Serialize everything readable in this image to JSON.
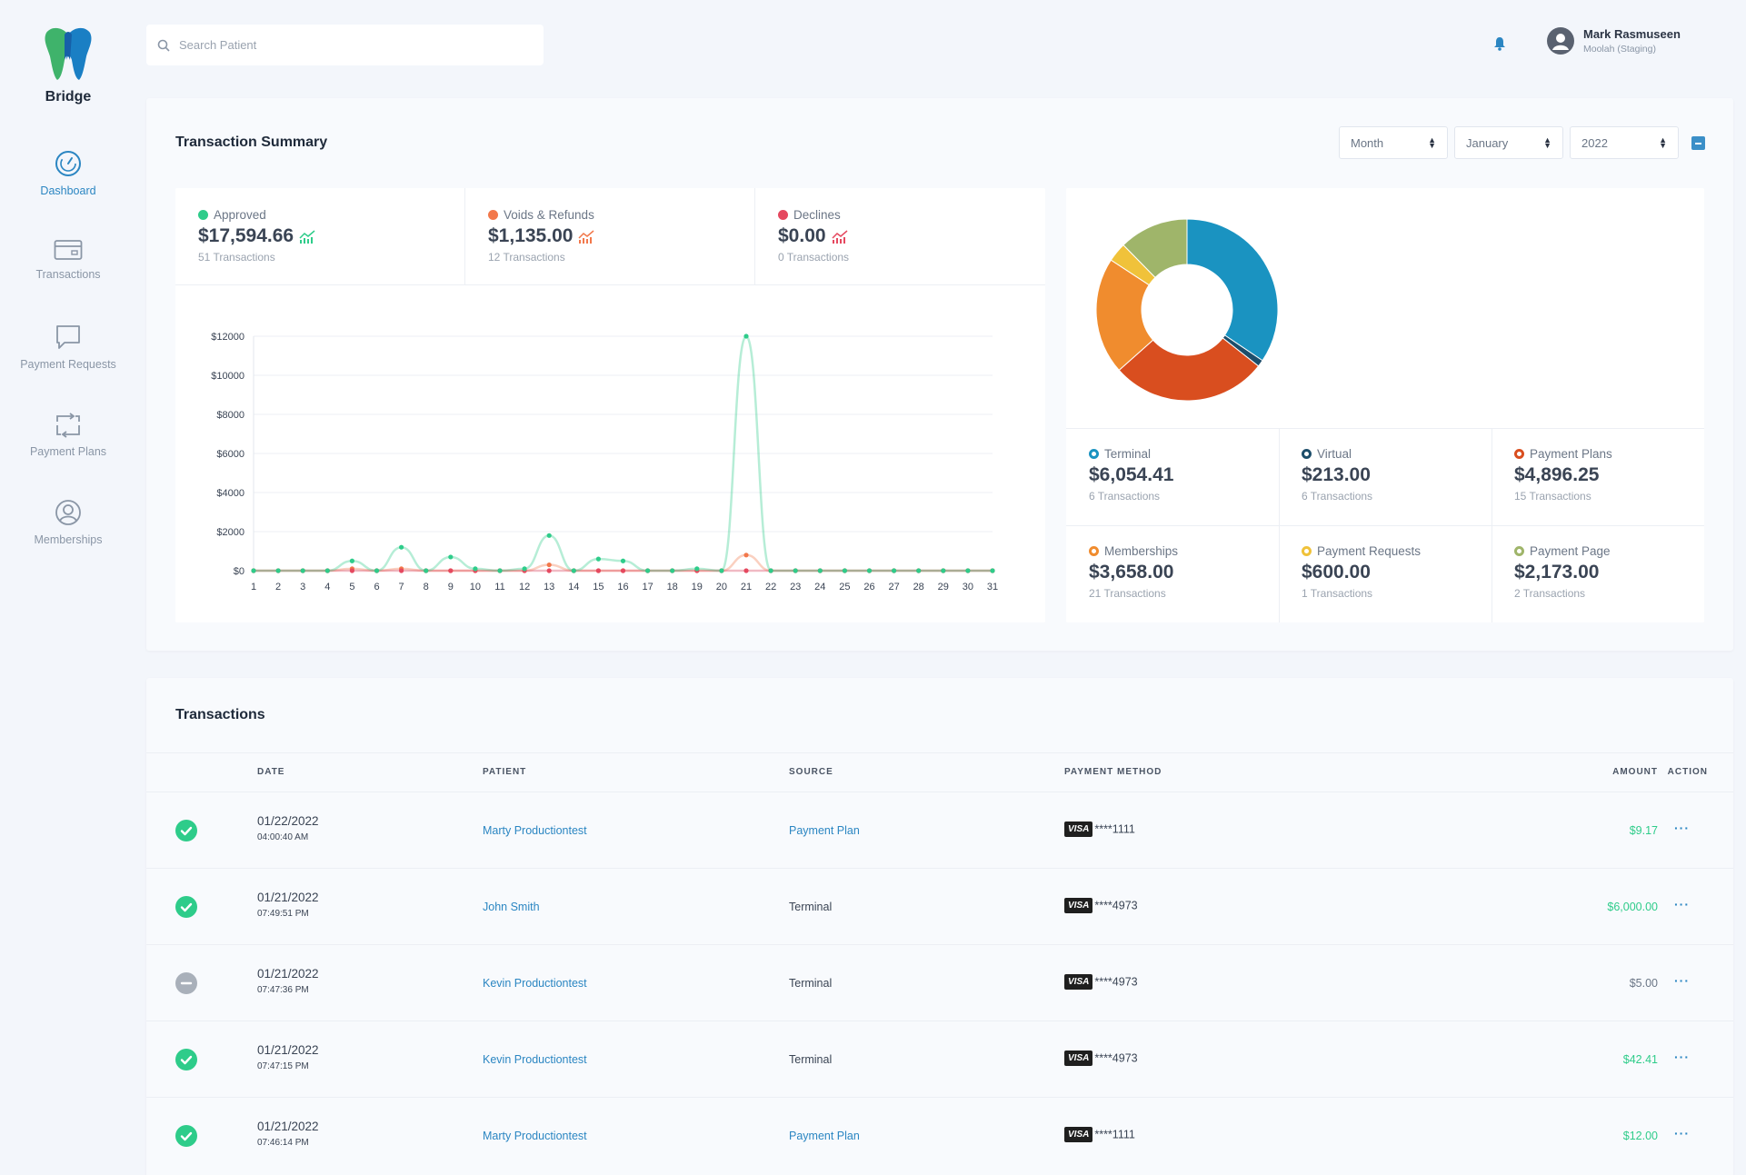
{
  "sidebar": {
    "brand": "Bridge",
    "items": [
      {
        "label": "Dashboard"
      },
      {
        "label": "Transactions"
      },
      {
        "label": "Payment Requests"
      },
      {
        "label": "Payment Plans"
      },
      {
        "label": "Memberships"
      }
    ]
  },
  "header": {
    "search_placeholder": "Search Patient",
    "user_name": "Mark Rasmuseen",
    "user_org": "Moolah (Staging)"
  },
  "summary": {
    "title": "Transaction Summary",
    "filters": {
      "period": "Month",
      "month": "January",
      "year": "2022"
    },
    "stats": [
      {
        "label": "Approved",
        "value": "$17,594.66",
        "sub": "51 Transactions",
        "color": "#2ecc8a"
      },
      {
        "label": "Voids & Refunds",
        "value": "$1,135.00",
        "sub": "12 Transactions",
        "color": "#f2784b"
      },
      {
        "label": "Declines",
        "value": "$0.00",
        "sub": "0 Transactions",
        "color": "#e5485f"
      }
    ],
    "sources": [
      {
        "label": "Terminal",
        "value": "$6,054.41",
        "sub": "6 Transactions",
        "color": "#1a93c1"
      },
      {
        "label": "Virtual",
        "value": "$213.00",
        "sub": "6 Transactions",
        "color": "#1d4e6b"
      },
      {
        "label": "Payment Plans",
        "value": "$4,896.25",
        "sub": "15 Transactions",
        "color": "#d94e1f"
      },
      {
        "label": "Memberships",
        "value": "$3,658.00",
        "sub": "21 Transactions",
        "color": "#f08c2e"
      },
      {
        "label": "Payment Requests",
        "value": "$600.00",
        "sub": "1 Transactions",
        "color": "#f0c23a"
      },
      {
        "label": "Payment Page",
        "value": "$2,173.00",
        "sub": "2 Transactions",
        "color": "#9fb56a"
      }
    ]
  },
  "chart_data": [
    {
      "type": "line",
      "x": [
        1,
        2,
        3,
        4,
        5,
        6,
        7,
        8,
        9,
        10,
        11,
        12,
        13,
        14,
        15,
        16,
        17,
        18,
        19,
        20,
        21,
        22,
        23,
        24,
        25,
        26,
        27,
        28,
        29,
        30,
        31
      ],
      "ylim": [
        0,
        12000
      ],
      "yticks": [
        "$0",
        "$2000",
        "$4000",
        "$6000",
        "$8000",
        "$10000",
        "$12000"
      ],
      "series": [
        {
          "color": "#2ecc8a",
          "values": [
            0,
            0,
            0,
            0,
            500,
            0,
            1200,
            0,
            700,
            100,
            0,
            100,
            1800,
            0,
            600,
            500,
            0,
            0,
            100,
            0,
            12000,
            0,
            0,
            0,
            0,
            0,
            0,
            0,
            0,
            0,
            0
          ]
        },
        {
          "color": "#f2784b",
          "values": [
            0,
            0,
            0,
            0,
            100,
            0,
            100,
            0,
            0,
            0,
            0,
            0,
            300,
            0,
            0,
            0,
            0,
            0,
            0,
            0,
            800,
            0,
            0,
            0,
            0,
            0,
            0,
            0,
            0,
            0,
            0
          ]
        },
        {
          "color": "#e5485f",
          "values": [
            0,
            0,
            0,
            0,
            0,
            0,
            0,
            0,
            0,
            0,
            0,
            0,
            0,
            0,
            0,
            0,
            0,
            0,
            0,
            0,
            0,
            0,
            0,
            0,
            0,
            0,
            0,
            0,
            0,
            0,
            0
          ]
        }
      ]
    },
    {
      "type": "pie",
      "categories": [
        "Terminal",
        "Virtual",
        "Payment Plans",
        "Memberships",
        "Payment Requests",
        "Payment Page"
      ],
      "values": [
        6054.41,
        213.0,
        4896.25,
        3658.0,
        600.0,
        2173.0
      ],
      "colors": [
        "#1a93c1",
        "#1d4e6b",
        "#d94e1f",
        "#f08c2e",
        "#f0c23a",
        "#9fb56a"
      ]
    }
  ],
  "transactions": {
    "title": "Transactions",
    "headers": {
      "date": "DATE",
      "patient": "PATIENT",
      "source": "SOURCE",
      "method": "PAYMENT METHOD",
      "amount": "AMOUNT",
      "action": "ACTION"
    },
    "visa_label": "VISA",
    "action_label": "···",
    "rows": [
      {
        "status": "approved",
        "date": "01/22/2022",
        "time": "04:00:40 AM",
        "patient": "Marty Productiontest",
        "source": "Payment Plan",
        "source_link": true,
        "card": "****1111",
        "amount": "$9.17"
      },
      {
        "status": "approved",
        "date": "01/21/2022",
        "time": "07:49:51 PM",
        "patient": "John Smith",
        "source": "Terminal",
        "source_link": false,
        "card": "****4973",
        "amount": "$6,000.00"
      },
      {
        "status": "void",
        "date": "01/21/2022",
        "time": "07:47:36 PM",
        "patient": "Kevin Productiontest",
        "source": "Terminal",
        "source_link": false,
        "card": "****4973",
        "amount": "$5.00"
      },
      {
        "status": "approved",
        "date": "01/21/2022",
        "time": "07:47:15 PM",
        "patient": "Kevin Productiontest",
        "source": "Terminal",
        "source_link": false,
        "card": "****4973",
        "amount": "$42.41"
      },
      {
        "status": "approved",
        "date": "01/21/2022",
        "time": "07:46:14 PM",
        "patient": "Marty Productiontest",
        "source": "Payment Plan",
        "source_link": true,
        "card": "****1111",
        "amount": "$12.00"
      }
    ]
  }
}
